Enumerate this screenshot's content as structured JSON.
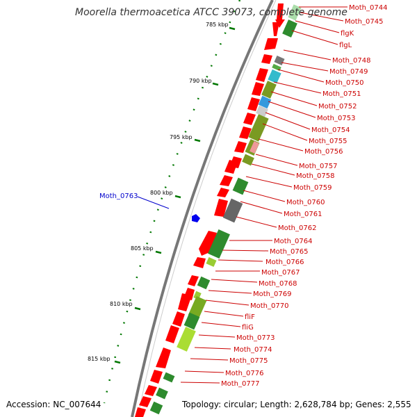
{
  "title": "Moorella thermoacetica ATCC 39073, complete genome",
  "accession": "Accession: NC_007644",
  "topology": "Topology: circular; Length: 2,628,784 bp; Genes: 2,555",
  "ruler": [
    "785 kbp",
    "790 kbp",
    "795 kbp",
    "800 kbp",
    "805 kbp",
    "810 kbp",
    "815 kbp"
  ],
  "highlight_gene": "Moth_0763",
  "genes": [
    "Moth_0744",
    "Moth_0745",
    "flgK",
    "flgL",
    "Moth_0748",
    "Moth_0749",
    "Moth_0750",
    "Moth_0751",
    "Moth_0752",
    "Moth_0753",
    "Moth_0754",
    "Moth_0755",
    "Moth_0756",
    "Moth_0757",
    "Moth_0758",
    "Moth_0759",
    "Moth_0760",
    "Moth_0761",
    "Moth_0762",
    "Moth_0764",
    "Moth_0765",
    "Moth_0766",
    "Moth_0767",
    "Moth_0768",
    "Moth_0769",
    "Moth_0770",
    "fliF",
    "fliG",
    "Moth_0773",
    "Moth_0774",
    "Moth_0775",
    "Moth_0776",
    "Moth_0777"
  ],
  "colors": {
    "cds": "#ff0000",
    "label": "#cc0000",
    "highlight": "#0000cc",
    "ruler": "#007700",
    "backbone": "#777777"
  }
}
